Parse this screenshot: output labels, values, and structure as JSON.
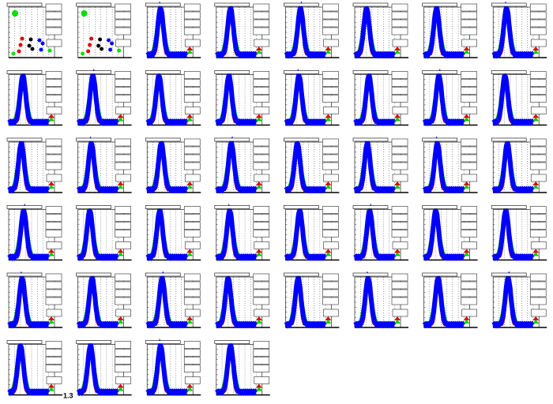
{
  "footer_label": "1.3"
}
